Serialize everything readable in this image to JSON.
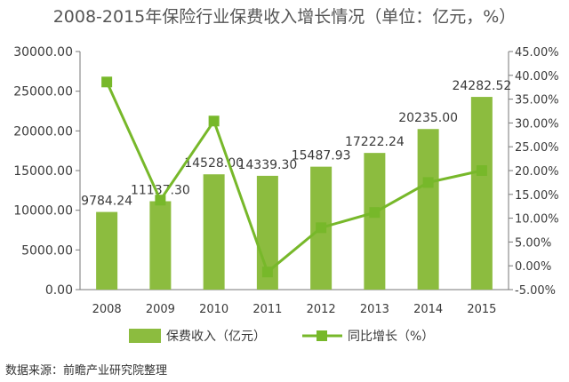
{
  "chart_data": {
    "type": "bar",
    "title": "2008-2015年保险行业保费收入增长情况（单位：亿元，%）",
    "categories": [
      "2008",
      "2009",
      "2010",
      "2011",
      "2012",
      "2013",
      "2014",
      "2015"
    ],
    "series": [
      {
        "name": "保费收入（亿元）",
        "type": "bar",
        "axis": "left",
        "values": [
          9784.24,
          11137.3,
          14528.0,
          14339.3,
          15487.93,
          17222.24,
          20235.0,
          24282.52
        ],
        "value_labels": [
          "9784.24",
          "11137.30",
          "14528.00",
          "14339.30",
          "15487.93",
          "17222.24",
          "20235.00",
          "24282.52"
        ]
      },
      {
        "name": "同比增长（%）",
        "type": "line",
        "axis": "right",
        "values": [
          38.6,
          13.8,
          30.4,
          -1.3,
          8.0,
          11.2,
          17.5,
          20.0
        ]
      }
    ],
    "y_left": {
      "ylim": [
        0,
        30000
      ],
      "ticks": [
        0,
        5000,
        10000,
        15000,
        20000,
        25000,
        30000
      ],
      "tick_labels": [
        "0.00",
        "5000.00",
        "10000.00",
        "15000.00",
        "20000.00",
        "25000.00",
        "30000.00"
      ]
    },
    "y_right": {
      "ylim": [
        -5,
        45
      ],
      "ticks": [
        -5,
        0,
        5,
        10,
        15,
        20,
        25,
        30,
        35,
        40,
        45
      ],
      "tick_labels": [
        "-5.00%",
        "0.00%",
        "5.00%",
        "10.00%",
        "15.00%",
        "20.00%",
        "25.00%",
        "30.00%",
        "35.00%",
        "40.00%",
        "45.00%"
      ]
    },
    "grid": false,
    "legend": "bottom",
    "source": "数据来源：前瞻产业研究院整理",
    "colors": {
      "bar": "#8cbc3f",
      "line": "#77b82a",
      "text": "#3a3a3a",
      "axis": "#777777"
    }
  }
}
